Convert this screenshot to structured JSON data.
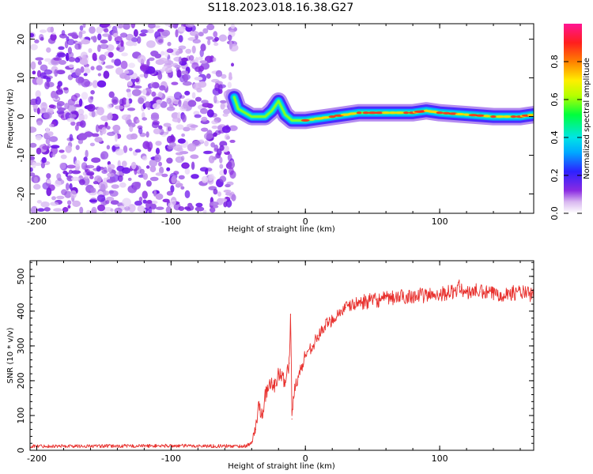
{
  "title": "S118.2023.018.16.38.G27",
  "chart_data": [
    {
      "type": "heatmap",
      "xlabel": "Height of straight line (km)",
      "ylabel": "Frequency (Hz)",
      "xlim": [
        -205,
        170
      ],
      "ylim": [
        -25,
        24
      ],
      "x_ticks": [
        -200,
        -100,
        0,
        100
      ],
      "x_tick_labels": [
        "-200",
        "-100",
        "0",
        "100"
      ],
      "y_ticks": [
        -20,
        -10,
        0,
        10,
        20
      ],
      "y_tick_labels": [
        "-20",
        "-10",
        "0",
        "10",
        "20"
      ],
      "noise_region_x": [
        -205,
        -53
      ],
      "signal_track": {
        "x": [
          -53,
          -50,
          -45,
          -40,
          -30,
          -25,
          -20,
          -15,
          -10,
          0,
          20,
          40,
          60,
          80,
          90,
          100,
          120,
          140,
          160,
          170
        ],
        "freq": [
          5,
          2,
          1,
          0,
          0,
          1.5,
          4,
          0.5,
          -1,
          -1,
          0,
          1,
          1,
          1,
          1.5,
          1,
          0.5,
          0,
          0,
          0.5
        ]
      },
      "grid": false,
      "colorbar": {
        "label": "Normalized spectral amplitude",
        "range": [
          0,
          1
        ],
        "ticks": [
          0.0,
          0.2,
          0.4,
          0.6,
          0.8
        ],
        "tick_labels": [
          "0.0",
          "0.2",
          "0.4",
          "0.6",
          "0.8"
        ]
      }
    },
    {
      "type": "line",
      "xlabel": "Height of straight line (km)",
      "ylabel": "SNR (10 * v/v)",
      "xlim": [
        -205,
        170
      ],
      "ylim": [
        0,
        545
      ],
      "x_ticks": [
        -200,
        -100,
        0,
        100
      ],
      "x_tick_labels": [
        "-200",
        "-100",
        "0",
        "100"
      ],
      "y_ticks": [
        0,
        100,
        200,
        300,
        400,
        500
      ],
      "y_tick_labels": [
        "0",
        "100",
        "200",
        "300",
        "400",
        "500"
      ],
      "grid": false,
      "series": [
        {
          "color": "#e8312e",
          "x": [
            -205,
            -150,
            -100,
            -60,
            -45,
            -40,
            -37,
            -35,
            -32,
            -30,
            -28,
            -25,
            -22,
            -20,
            -15,
            -12,
            -11,
            -10,
            -8,
            -5,
            0,
            5,
            10,
            15,
            20,
            25,
            30,
            40,
            50,
            60,
            70,
            80,
            90,
            100,
            110,
            115,
            120,
            125,
            130,
            140,
            150,
            160,
            170
          ],
          "y": [
            12,
            12,
            13,
            12,
            12,
            20,
            60,
            130,
            105,
            160,
            170,
            195,
            185,
            220,
            200,
            250,
            390,
            90,
            190,
            210,
            275,
            300,
            330,
            360,
            375,
            395,
            410,
            425,
            430,
            435,
            440,
            445,
            445,
            450,
            455,
            470,
            450,
            460,
            455,
            450,
            450,
            455,
            445
          ]
        }
      ]
    }
  ]
}
